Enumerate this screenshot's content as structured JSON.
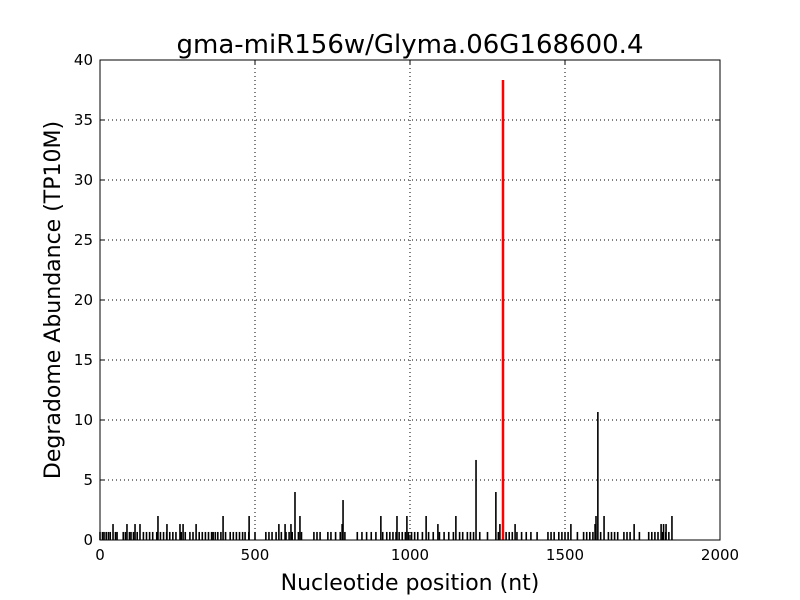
{
  "chart_data": {
    "type": "bar",
    "title": "gma-miR156w/Glyma.06G168600.4",
    "xlabel": "Nucleotide position (nt)",
    "ylabel": "Degradome Abundance (TP10M)",
    "xlim": [
      0,
      2000
    ],
    "ylim": [
      0,
      40
    ],
    "xticks": [
      0,
      500,
      1000,
      1500,
      2000
    ],
    "yticks": [
      0,
      5,
      10,
      15,
      20,
      25,
      30,
      35,
      40
    ],
    "grid": true,
    "colors": {
      "default": "#000000",
      "highlight": "#ff0000"
    },
    "highlight": {
      "x": 1300,
      "y": 38.33
    },
    "series": [
      {
        "points": [
          [
            42,
            1.33
          ],
          [
            87,
            1.33
          ],
          [
            113,
            1.33
          ],
          [
            129,
            1.33
          ],
          [
            187,
            2
          ],
          [
            216,
            1.33
          ],
          [
            258,
            1.33
          ],
          [
            268,
            1.33
          ],
          [
            310,
            1.33
          ],
          [
            397,
            2
          ],
          [
            481,
            2
          ],
          [
            577,
            1.33
          ],
          [
            597,
            1.33
          ],
          [
            616,
            1.33
          ],
          [
            629,
            4
          ],
          [
            645,
            2
          ],
          [
            781,
            1.33
          ],
          [
            784,
            3.33
          ],
          [
            906,
            2
          ],
          [
            958,
            2
          ],
          [
            990,
            2
          ],
          [
            1052,
            2
          ],
          [
            1090,
            1.33
          ],
          [
            1148,
            2
          ],
          [
            1213,
            6.67
          ],
          [
            1277,
            4
          ],
          [
            1290,
            1.33
          ],
          [
            1339,
            1.33
          ],
          [
            1519,
            1.33
          ],
          [
            1597,
            1.33
          ],
          [
            1600,
            2
          ],
          [
            1606,
            10.67
          ],
          [
            1626,
            2
          ],
          [
            1723,
            1.33
          ],
          [
            1810,
            1.33
          ],
          [
            1818,
            1.33
          ],
          [
            1826,
            1.33
          ],
          [
            1845,
            2
          ],
          [
            0,
            0.67
          ],
          [
            8,
            0.67
          ],
          [
            13,
            0.67
          ],
          [
            20,
            0.67
          ],
          [
            27,
            0.67
          ],
          [
            33,
            0.67
          ],
          [
            50,
            0.67
          ],
          [
            55,
            0.67
          ],
          [
            75,
            0.67
          ],
          [
            82,
            0.67
          ],
          [
            95,
            0.67
          ],
          [
            100,
            0.67
          ],
          [
            108,
            0.67
          ],
          [
            120,
            0.67
          ],
          [
            140,
            0.67
          ],
          [
            150,
            0.67
          ],
          [
            160,
            0.67
          ],
          [
            170,
            0.67
          ],
          [
            183,
            0.67
          ],
          [
            195,
            0.67
          ],
          [
            205,
            0.67
          ],
          [
            215,
            0.67
          ],
          [
            225,
            0.67
          ],
          [
            235,
            0.67
          ],
          [
            245,
            0.67
          ],
          [
            262,
            0.67
          ],
          [
            275,
            0.67
          ],
          [
            290,
            0.67
          ],
          [
            300,
            0.67
          ],
          [
            320,
            0.67
          ],
          [
            330,
            0.67
          ],
          [
            340,
            0.67
          ],
          [
            350,
            0.67
          ],
          [
            360,
            0.67
          ],
          [
            365,
            0.67
          ],
          [
            372,
            0.67
          ],
          [
            380,
            0.67
          ],
          [
            390,
            0.67
          ],
          [
            405,
            0.67
          ],
          [
            420,
            0.67
          ],
          [
            430,
            0.67
          ],
          [
            440,
            0.67
          ],
          [
            450,
            0.67
          ],
          [
            460,
            0.67
          ],
          [
            468,
            0.67
          ],
          [
            480,
            0.67
          ],
          [
            500,
            0.67
          ],
          [
            535,
            0.67
          ],
          [
            545,
            0.67
          ],
          [
            555,
            0.67
          ],
          [
            568,
            0.67
          ],
          [
            585,
            0.67
          ],
          [
            600,
            0.67
          ],
          [
            610,
            0.67
          ],
          [
            620,
            0.67
          ],
          [
            640,
            0.67
          ],
          [
            650,
            0.67
          ],
          [
            690,
            0.67
          ],
          [
            700,
            0.67
          ],
          [
            710,
            0.67
          ],
          [
            735,
            0.67
          ],
          [
            745,
            0.67
          ],
          [
            760,
            0.67
          ],
          [
            775,
            0.67
          ],
          [
            790,
            0.67
          ],
          [
            830,
            0.67
          ],
          [
            845,
            0.67
          ],
          [
            860,
            0.67
          ],
          [
            875,
            0.67
          ],
          [
            890,
            0.67
          ],
          [
            912,
            0.67
          ],
          [
            925,
            0.67
          ],
          [
            935,
            0.67
          ],
          [
            945,
            0.67
          ],
          [
            955,
            0.67
          ],
          [
            965,
            0.67
          ],
          [
            975,
            0.67
          ],
          [
            985,
            0.67
          ],
          [
            995,
            0.67
          ],
          [
            1005,
            0.67
          ],
          [
            1015,
            0.67
          ],
          [
            1025,
            0.67
          ],
          [
            1040,
            0.67
          ],
          [
            1060,
            0.67
          ],
          [
            1075,
            0.67
          ],
          [
            1095,
            0.67
          ],
          [
            1110,
            0.67
          ],
          [
            1125,
            0.67
          ],
          [
            1140,
            0.67
          ],
          [
            1160,
            0.67
          ],
          [
            1170,
            0.67
          ],
          [
            1185,
            0.67
          ],
          [
            1195,
            0.67
          ],
          [
            1205,
            0.67
          ],
          [
            1225,
            0.67
          ],
          [
            1250,
            0.67
          ],
          [
            1285,
            0.67
          ],
          [
            1310,
            0.67
          ],
          [
            1320,
            0.67
          ],
          [
            1330,
            0.67
          ],
          [
            1345,
            0.67
          ],
          [
            1360,
            0.67
          ],
          [
            1375,
            0.67
          ],
          [
            1390,
            0.67
          ],
          [
            1410,
            0.67
          ],
          [
            1445,
            0.67
          ],
          [
            1455,
            0.67
          ],
          [
            1465,
            0.67
          ],
          [
            1480,
            0.67
          ],
          [
            1490,
            0.67
          ],
          [
            1500,
            0.67
          ],
          [
            1510,
            0.67
          ],
          [
            1540,
            0.67
          ],
          [
            1560,
            0.67
          ],
          [
            1570,
            0.67
          ],
          [
            1580,
            0.67
          ],
          [
            1590,
            0.67
          ],
          [
            1615,
            0.67
          ],
          [
            1640,
            0.67
          ],
          [
            1650,
            0.67
          ],
          [
            1660,
            0.67
          ],
          [
            1670,
            0.67
          ],
          [
            1690,
            0.67
          ],
          [
            1700,
            0.67
          ],
          [
            1710,
            0.67
          ],
          [
            1740,
            0.67
          ],
          [
            1770,
            0.67
          ],
          [
            1780,
            0.67
          ],
          [
            1790,
            0.67
          ],
          [
            1800,
            0.67
          ],
          [
            1815,
            0.67
          ],
          [
            1825,
            0.67
          ],
          [
            1835,
            0.67
          ]
        ]
      }
    ]
  }
}
